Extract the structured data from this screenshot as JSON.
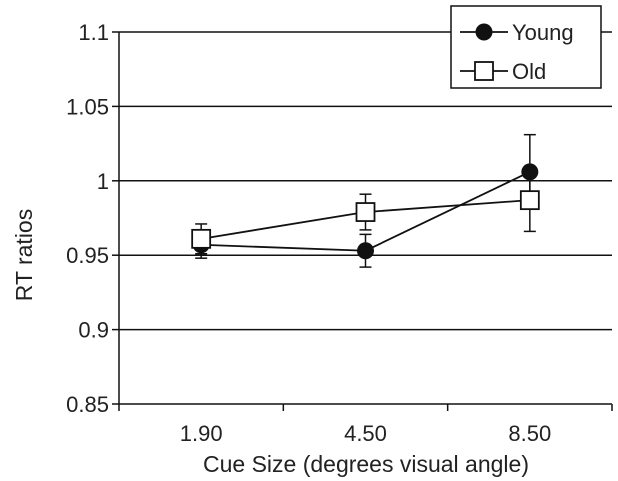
{
  "chart_data": {
    "type": "line",
    "categories": [
      "1.90",
      "4.50",
      "8.50"
    ],
    "xlabel": "Cue Size (degrees visual angle)",
    "ylabel": "RT ratios",
    "ylim": [
      0.85,
      1.1
    ],
    "yticks": [
      "0.85",
      "0.9",
      "0.95",
      "1",
      "1.05",
      "1.1"
    ],
    "grid": "horizontal",
    "legend_position": "top-right",
    "series": [
      {
        "name": "Young",
        "marker": "filled-circle",
        "color": "#111111",
        "values": [
          0.957,
          0.953,
          1.006
        ],
        "error": [
          0.009,
          0.011,
          0.025
        ]
      },
      {
        "name": "Old",
        "marker": "open-square",
        "color": "#111111",
        "values": [
          0.961,
          0.979,
          0.987
        ],
        "error": [
          0.01,
          0.012,
          0.021
        ]
      }
    ]
  }
}
